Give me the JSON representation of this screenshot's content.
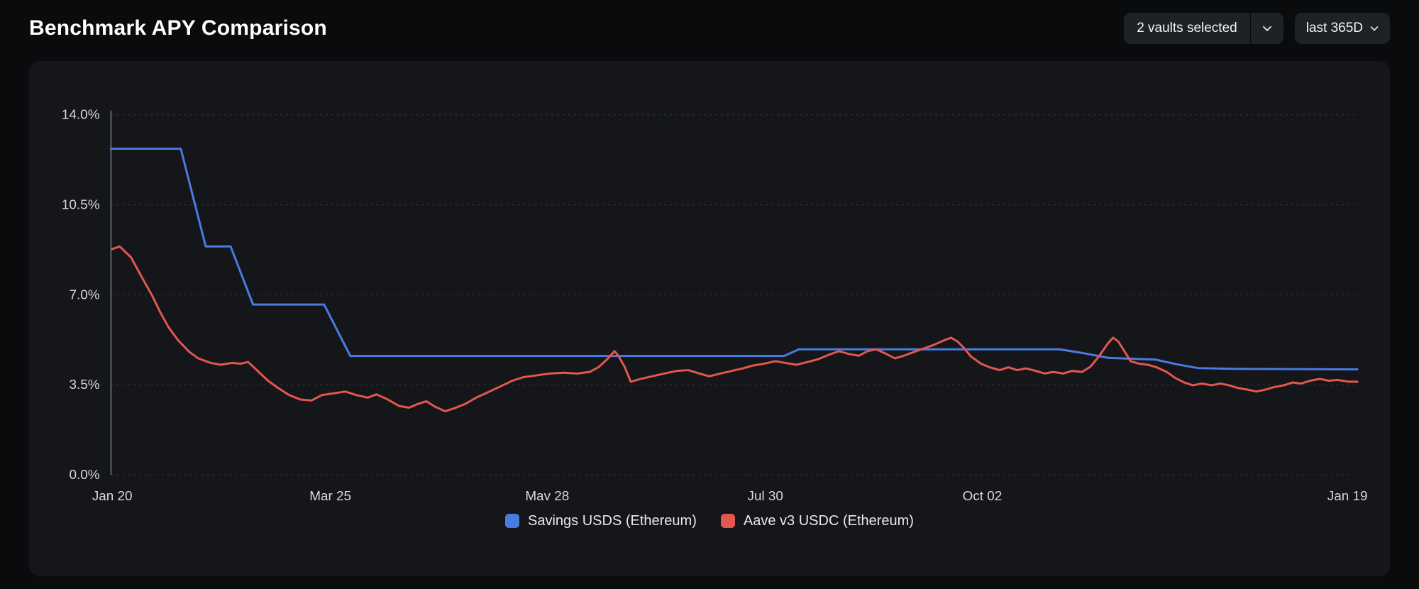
{
  "header": {
    "title": "Benchmark APY Comparison",
    "vaults_dropdown": {
      "label": "2 vaults selected"
    },
    "range_dropdown": {
      "label": "last 365D"
    }
  },
  "chart_data": {
    "type": "line",
    "title": "Benchmark APY Comparison",
    "ylim": [
      0,
      14
    ],
    "grid": "dashed-horizontal",
    "legend_position": "bottom",
    "y_ticks": [
      {
        "value": 14.0,
        "label": "14.0%"
      },
      {
        "value": 10.5,
        "label": "10.5%"
      },
      {
        "value": 7.0,
        "label": "7.0%"
      },
      {
        "value": 3.5,
        "label": "3.5%"
      },
      {
        "value": 0.0,
        "label": "0.0%"
      }
    ],
    "x_ticks": [
      {
        "pos": 0.001,
        "label": "Jan 20"
      },
      {
        "pos": 0.176,
        "label": "Mar 25"
      },
      {
        "pos": 0.35,
        "label": "May 28"
      },
      {
        "pos": 0.525,
        "label": "Jul 30"
      },
      {
        "pos": 0.699,
        "label": "Oct 02"
      },
      {
        "pos": 0.992,
        "label": "Jan 19"
      }
    ],
    "series": [
      {
        "name": "Savings USDS (Ethereum)",
        "color": "#4a7be0",
        "points": [
          [
            0.0,
            12.68
          ],
          [
            0.056,
            12.68
          ],
          [
            0.076,
            8.88
          ],
          [
            0.096,
            8.88
          ],
          [
            0.114,
            6.62
          ],
          [
            0.171,
            6.62
          ],
          [
            0.192,
            4.62
          ],
          [
            0.54,
            4.62
          ],
          [
            0.552,
            4.88
          ],
          [
            0.761,
            4.88
          ],
          [
            0.778,
            4.75
          ],
          [
            0.8,
            4.55
          ],
          [
            0.838,
            4.48
          ],
          [
            0.855,
            4.3
          ],
          [
            0.872,
            4.15
          ],
          [
            0.9,
            4.12
          ],
          [
            1.0,
            4.1
          ]
        ]
      },
      {
        "name": "Aave v3 USDC (Ethereum)",
        "color": "#e2574e",
        "points": [
          [
            0.001,
            8.78
          ],
          [
            0.007,
            8.88
          ],
          [
            0.016,
            8.46
          ],
          [
            0.025,
            7.66
          ],
          [
            0.033,
            6.97
          ],
          [
            0.039,
            6.37
          ],
          [
            0.046,
            5.75
          ],
          [
            0.054,
            5.22
          ],
          [
            0.063,
            4.77
          ],
          [
            0.07,
            4.53
          ],
          [
            0.08,
            4.35
          ],
          [
            0.088,
            4.28
          ],
          [
            0.097,
            4.35
          ],
          [
            0.104,
            4.32
          ],
          [
            0.11,
            4.39
          ],
          [
            0.117,
            4.07
          ],
          [
            0.126,
            3.66
          ],
          [
            0.134,
            3.38
          ],
          [
            0.143,
            3.1
          ],
          [
            0.152,
            2.93
          ],
          [
            0.161,
            2.89
          ],
          [
            0.169,
            3.1
          ],
          [
            0.179,
            3.17
          ],
          [
            0.188,
            3.24
          ],
          [
            0.197,
            3.1
          ],
          [
            0.206,
            3.0
          ],
          [
            0.213,
            3.13
          ],
          [
            0.222,
            2.93
          ],
          [
            0.231,
            2.68
          ],
          [
            0.239,
            2.61
          ],
          [
            0.246,
            2.75
          ],
          [
            0.253,
            2.86
          ],
          [
            0.26,
            2.65
          ],
          [
            0.268,
            2.47
          ],
          [
            0.275,
            2.58
          ],
          [
            0.284,
            2.75
          ],
          [
            0.293,
            3.0
          ],
          [
            0.302,
            3.2
          ],
          [
            0.313,
            3.45
          ],
          [
            0.322,
            3.66
          ],
          [
            0.331,
            3.8
          ],
          [
            0.342,
            3.87
          ],
          [
            0.352,
            3.94
          ],
          [
            0.363,
            3.97
          ],
          [
            0.374,
            3.94
          ],
          [
            0.384,
            4.0
          ],
          [
            0.391,
            4.18
          ],
          [
            0.398,
            4.49
          ],
          [
            0.404,
            4.81
          ],
          [
            0.407,
            4.63
          ],
          [
            0.412,
            4.21
          ],
          [
            0.417,
            3.62
          ],
          [
            0.425,
            3.73
          ],
          [
            0.434,
            3.83
          ],
          [
            0.444,
            3.94
          ],
          [
            0.454,
            4.04
          ],
          [
            0.463,
            4.07
          ],
          [
            0.472,
            3.94
          ],
          [
            0.48,
            3.83
          ],
          [
            0.489,
            3.94
          ],
          [
            0.498,
            4.04
          ],
          [
            0.507,
            4.14
          ],
          [
            0.515,
            4.25
          ],
          [
            0.524,
            4.32
          ],
          [
            0.533,
            4.42
          ],
          [
            0.541,
            4.35
          ],
          [
            0.55,
            4.28
          ],
          [
            0.559,
            4.39
          ],
          [
            0.567,
            4.49
          ],
          [
            0.576,
            4.67
          ],
          [
            0.584,
            4.81
          ],
          [
            0.592,
            4.7
          ],
          [
            0.6,
            4.63
          ],
          [
            0.607,
            4.81
          ],
          [
            0.614,
            4.88
          ],
          [
            0.622,
            4.7
          ],
          [
            0.629,
            4.53
          ],
          [
            0.636,
            4.63
          ],
          [
            0.644,
            4.77
          ],
          [
            0.652,
            4.91
          ],
          [
            0.66,
            5.05
          ],
          [
            0.668,
            5.22
          ],
          [
            0.674,
            5.33
          ],
          [
            0.679,
            5.19
          ],
          [
            0.684,
            4.95
          ],
          [
            0.69,
            4.6
          ],
          [
            0.698,
            4.32
          ],
          [
            0.705,
            4.18
          ],
          [
            0.713,
            4.07
          ],
          [
            0.72,
            4.18
          ],
          [
            0.727,
            4.07
          ],
          [
            0.734,
            4.14
          ],
          [
            0.742,
            4.04
          ],
          [
            0.749,
            3.94
          ],
          [
            0.756,
            4.0
          ],
          [
            0.764,
            3.94
          ],
          [
            0.771,
            4.04
          ],
          [
            0.779,
            4.0
          ],
          [
            0.786,
            4.21
          ],
          [
            0.793,
            4.63
          ],
          [
            0.8,
            5.12
          ],
          [
            0.804,
            5.33
          ],
          [
            0.808,
            5.19
          ],
          [
            0.813,
            4.81
          ],
          [
            0.818,
            4.42
          ],
          [
            0.825,
            4.32
          ],
          [
            0.832,
            4.28
          ],
          [
            0.839,
            4.18
          ],
          [
            0.847,
            4.0
          ],
          [
            0.854,
            3.76
          ],
          [
            0.861,
            3.59
          ],
          [
            0.868,
            3.48
          ],
          [
            0.875,
            3.55
          ],
          [
            0.883,
            3.48
          ],
          [
            0.89,
            3.55
          ],
          [
            0.897,
            3.48
          ],
          [
            0.904,
            3.38
          ],
          [
            0.912,
            3.31
          ],
          [
            0.919,
            3.24
          ],
          [
            0.926,
            3.31
          ],
          [
            0.933,
            3.41
          ],
          [
            0.941,
            3.48
          ],
          [
            0.948,
            3.59
          ],
          [
            0.955,
            3.55
          ],
          [
            0.962,
            3.66
          ],
          [
            0.97,
            3.73
          ],
          [
            0.977,
            3.66
          ],
          [
            0.984,
            3.69
          ],
          [
            0.993,
            3.62
          ],
          [
            1.0,
            3.62
          ]
        ]
      }
    ]
  }
}
